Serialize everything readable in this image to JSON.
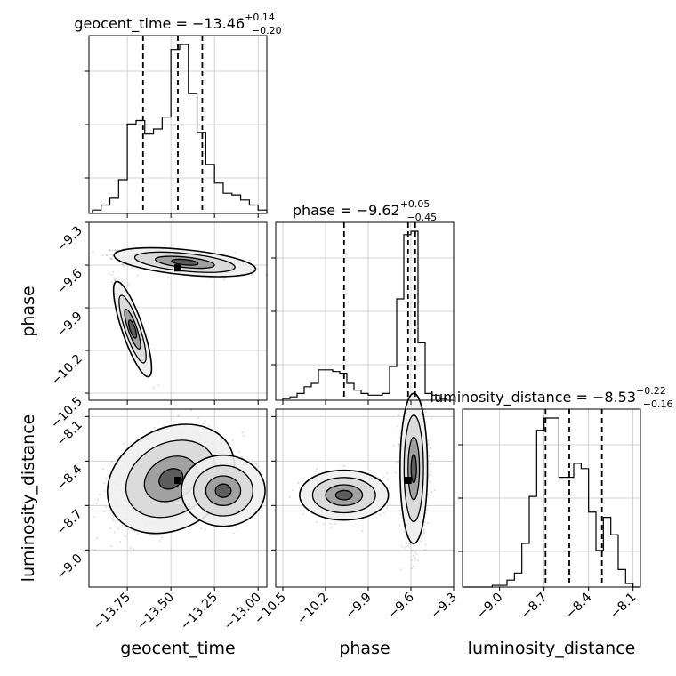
{
  "chart_data": {
    "type": "corner",
    "parameters": [
      "geocent_time",
      "phase",
      "luminosity_distance"
    ],
    "titles": [
      {
        "name": "geocent_time",
        "median": "−13.46",
        "upper": "+0.14",
        "lower": "−0.20"
      },
      {
        "name": "phase",
        "median": "−9.62",
        "upper": "+0.05",
        "lower": "−0.45"
      },
      {
        "name": "luminosity_distance",
        "median": "−8.53",
        "upper": "+0.22",
        "lower": "−0.16"
      }
    ],
    "ranges": {
      "geocent_time": [
        -13.97,
        -12.95
      ],
      "phase": [
        -10.55,
        -9.3
      ],
      "luminosity_distance": [
        -9.25,
        -8.05
      ]
    },
    "ticks": {
      "geocent_time": {
        "values": [
          -13.75,
          -13.5,
          -13.25,
          -13.0
        ],
        "labels": [
          "−13.75",
          "−13.50",
          "−13.25",
          "−13.00"
        ]
      },
      "phase": {
        "values": [
          -10.5,
          -10.2,
          -9.9,
          -9.6,
          -9.3
        ],
        "labels": [
          "−10.5",
          "−10.2",
          "−9.9",
          "−9.6",
          "−9.3"
        ]
      },
      "luminosity_distance": {
        "values": [
          -9.0,
          -8.7,
          -8.4,
          -8.1
        ],
        "labels": [
          "−9.0",
          "−8.7",
          "−8.4",
          "−8.1"
        ]
      }
    },
    "quantiles": {
      "geocent_time": [
        -13.66,
        -13.46,
        -13.32
      ],
      "phase": [
        -10.07,
        -9.62,
        -9.57
      ],
      "luminosity_distance": [
        -8.69,
        -8.53,
        -8.31
      ]
    },
    "histograms": {
      "geocent_time": {
        "edges": [
          -13.95,
          -13.9,
          -13.85,
          -13.8,
          -13.75,
          -13.7,
          -13.65,
          -13.6,
          -13.55,
          -13.5,
          -13.45,
          -13.4,
          -13.35,
          -13.3,
          -13.25,
          -13.2,
          -13.15,
          -13.1,
          -13.05,
          -13.0,
          -12.95
        ],
        "counts": [
          2,
          5,
          9,
          20,
          53,
          55,
          47,
          50,
          57,
          97,
          100,
          71,
          48,
          29,
          18,
          12,
          11,
          8,
          5,
          2
        ]
      },
      "phase": {
        "edges": [
          -10.5,
          -10.45,
          -10.4,
          -10.35,
          -10.3,
          -10.25,
          -10.2,
          -10.15,
          -10.1,
          -10.05,
          -10.0,
          -9.95,
          -9.9,
          -9.85,
          -9.8,
          -9.75,
          -9.7,
          -9.65,
          -9.6,
          -9.55,
          -9.5,
          -9.45,
          -9.4,
          -9.35
        ],
        "counts": [
          1,
          2,
          4,
          8,
          10,
          18,
          18,
          17,
          16,
          10,
          6,
          4,
          3,
          3,
          4,
          20,
          60,
          98,
          100,
          34,
          4,
          3,
          1
        ]
      },
      "luminosity_distance": {
        "edges": [
          -9.25,
          -9.2,
          -9.15,
          -9.1,
          -9.05,
          -9.0,
          -8.95,
          -8.9,
          -8.85,
          -8.8,
          -8.75,
          -8.7,
          -8.65,
          -8.6,
          -8.55,
          -8.5,
          -8.45,
          -8.4,
          -8.35,
          -8.3,
          -8.25,
          -8.2,
          -8.15,
          -8.1,
          -8.05
        ],
        "counts": [
          0,
          0,
          0,
          0,
          1,
          1,
          4,
          8,
          25,
          52,
          90,
          97,
          97,
          63,
          63,
          71,
          68,
          43,
          21,
          40,
          30,
          10,
          2,
          0
        ]
      }
    },
    "grid": true
  }
}
